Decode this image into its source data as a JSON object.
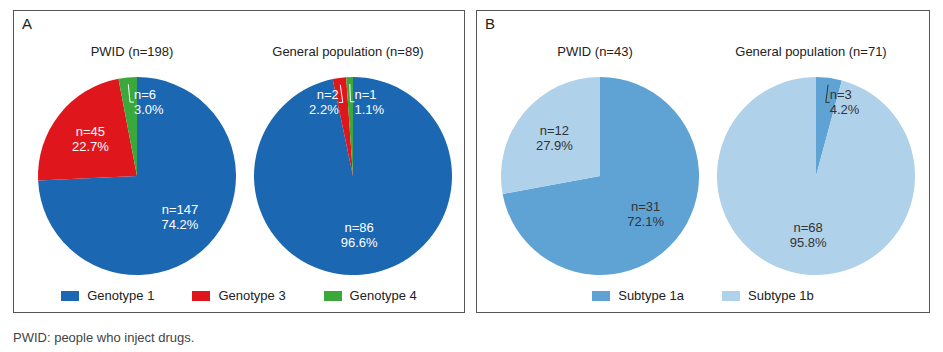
{
  "chart_data": [
    {
      "type": "pie",
      "title": "A",
      "categories": [
        "Genotype 1",
        "Genotype 3",
        "Genotype 4"
      ],
      "colors": [
        "#1b67b1",
        "#e0161d",
        "#3aa83a"
      ],
      "legend": "bottom",
      "data_labels": true,
      "series": [
        {
          "name": "PWID (n=198)",
          "values": [
            74.2,
            22.7,
            3.0
          ],
          "value_labels": [
            "74.2%",
            "22.7%",
            "3.0%"
          ],
          "counts": [
            147,
            45,
            6
          ],
          "count_labels": [
            "n=147",
            "n=45",
            "n=6"
          ]
        },
        {
          "name": "General population (n=89)",
          "values": [
            96.6,
            2.2,
            1.1
          ],
          "value_labels": [
            "96.6%",
            "2.2%",
            "1.1%"
          ],
          "counts": [
            86,
            2,
            1
          ],
          "count_labels": [
            "n=86",
            "n=2",
            "n=1"
          ]
        }
      ]
    },
    {
      "type": "pie",
      "title": "B",
      "categories": [
        "Subtype 1a",
        "Subtype 1b"
      ],
      "colors": [
        "#5fa3d4",
        "#afd1ea"
      ],
      "legend": "bottom",
      "data_labels": true,
      "series": [
        {
          "name": "PWID (n=43)",
          "values": [
            72.1,
            27.9
          ],
          "value_labels": [
            "72.1%",
            "27.9%"
          ],
          "counts": [
            31,
            12
          ],
          "count_labels": [
            "n=31",
            "n=12"
          ]
        },
        {
          "name": "General population (n=71)",
          "values": [
            4.2,
            95.8
          ],
          "value_labels": [
            "4.2%",
            "95.8%"
          ],
          "counts": [
            3,
            68
          ],
          "count_labels": [
            "n=3",
            "n=68"
          ]
        }
      ]
    }
  ],
  "footnote": "PWID: people who inject drugs."
}
